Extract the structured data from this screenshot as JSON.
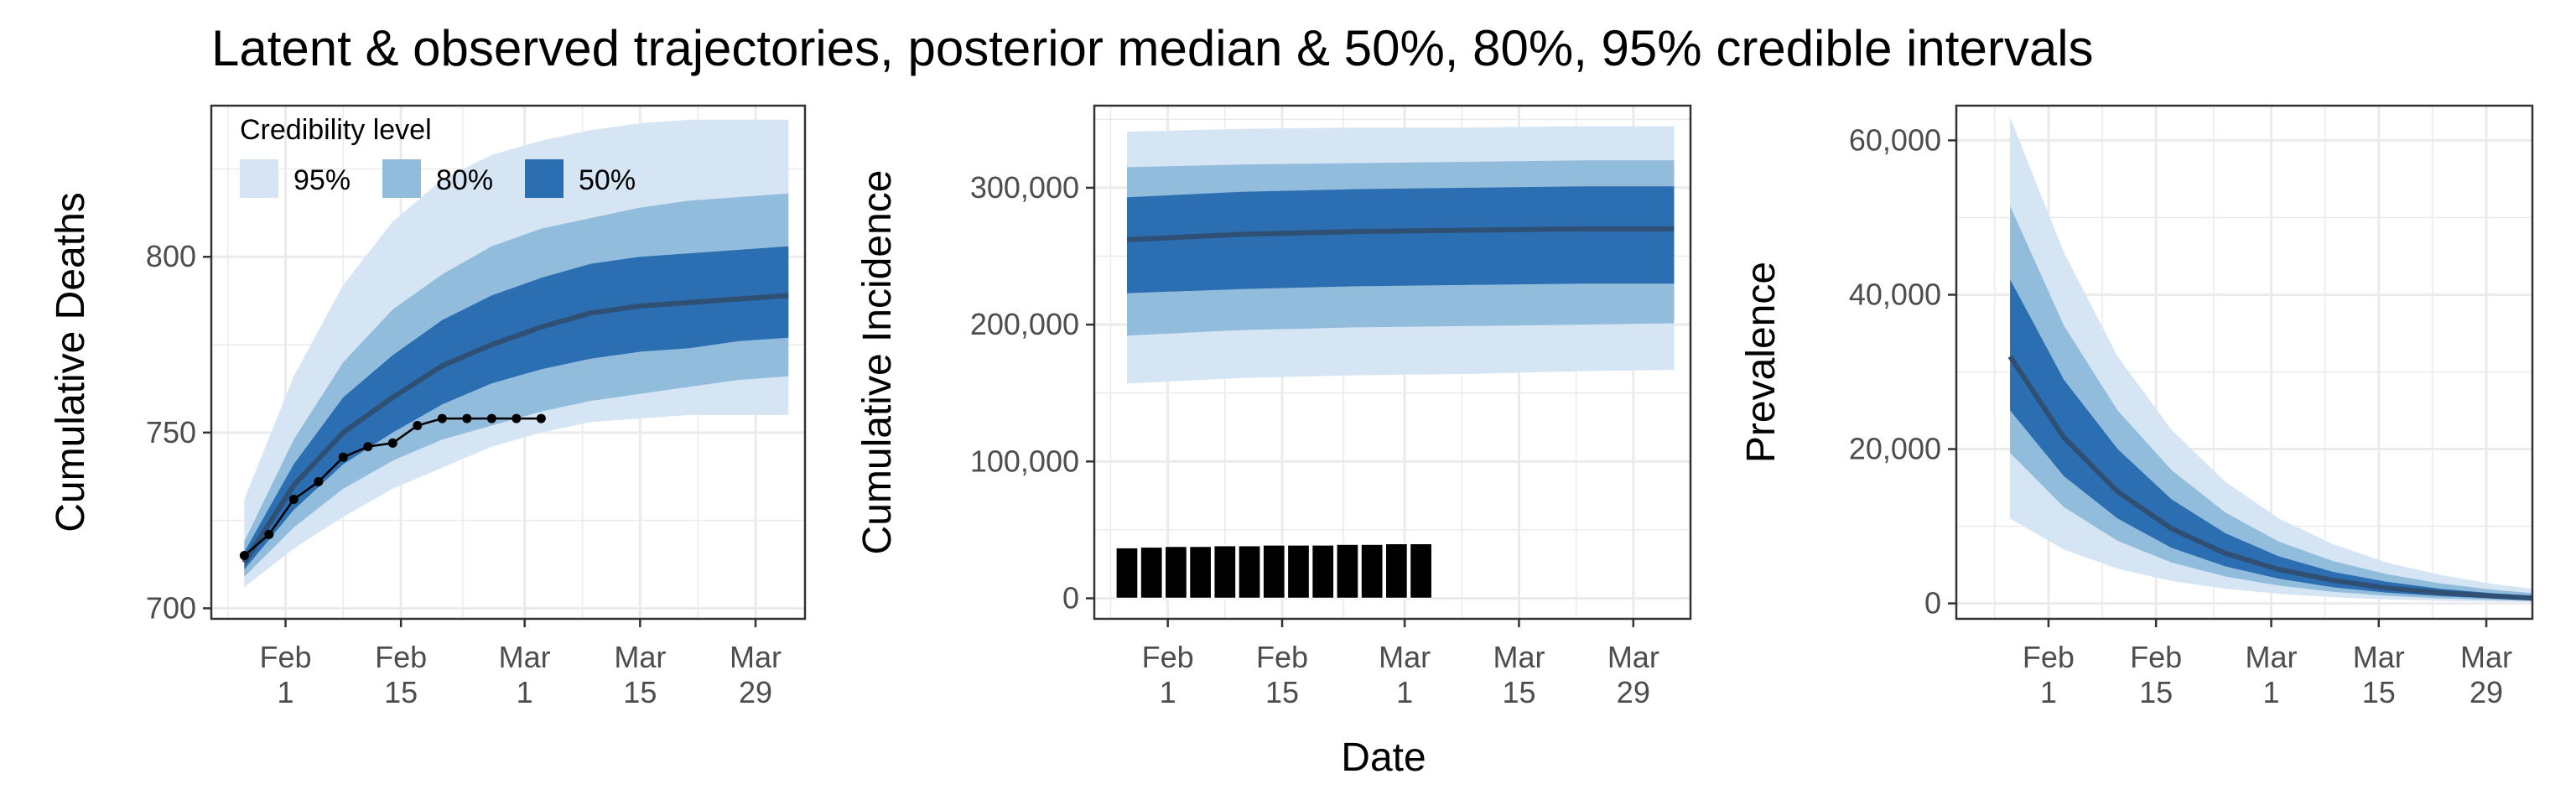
{
  "title": "Latent & observed trajectories, posterior median & 50%, 80%, 95% credible intervals",
  "shared_xlabel": "Date",
  "colors": {
    "band95": "#d6e5f4",
    "band80": "#91bcdb",
    "band50": "#2b6eb1",
    "median": "#2f4f73",
    "observed": "#000000",
    "grid": "#ebebeb",
    "frame": "#333333"
  },
  "legend": {
    "title": "Credibility level",
    "items": [
      {
        "label": "95%",
        "key": "band95"
      },
      {
        "label": "80%",
        "key": "band80"
      },
      {
        "label": "50%",
        "key": "band50"
      }
    ]
  },
  "x_ticks": [
    {
      "month": "Feb",
      "day": "1",
      "value": "2020-02-01"
    },
    {
      "month": "Feb",
      "day": "15",
      "value": "2020-02-15"
    },
    {
      "month": "Mar",
      "day": "1",
      "value": "2020-03-01"
    },
    {
      "month": "Mar",
      "day": "15",
      "value": "2020-03-15"
    },
    {
      "month": "Mar",
      "day": "29",
      "value": "2020-03-29"
    }
  ],
  "chart_data": [
    {
      "type": "area",
      "ylabel": "Cumulative Deaths",
      "xlim": [
        "2020-01-23",
        "2020-04-04"
      ],
      "ylim": [
        697,
        843
      ],
      "y_ticks": [
        {
          "value": 700,
          "label": "700"
        },
        {
          "value": 750,
          "label": "750"
        },
        {
          "value": 800,
          "label": "800"
        }
      ],
      "legend_position": "top-left",
      "bands": {
        "x": [
          "2020-01-27",
          "2020-02-02",
          "2020-02-08",
          "2020-02-14",
          "2020-02-20",
          "2020-02-26",
          "2020-03-03",
          "2020-03-09",
          "2020-03-15",
          "2020-03-21",
          "2020-03-27",
          "2020-04-02"
        ],
        "median": [
          713,
          735,
          750,
          760,
          769,
          775,
          780,
          784,
          786,
          787,
          788,
          789
        ],
        "lo50": [
          711,
          728,
          741,
          750,
          758,
          764,
          768,
          771,
          773,
          774,
          776,
          777
        ],
        "hi50": [
          716,
          741,
          760,
          772,
          782,
          789,
          794,
          798,
          800,
          801,
          802,
          803
        ],
        "lo80": [
          709,
          723,
          734,
          742,
          748,
          752,
          756,
          759,
          761,
          763,
          765,
          766
        ],
        "hi80": [
          719,
          748,
          770,
          785,
          795,
          803,
          808,
          811,
          814,
          816,
          817,
          818
        ],
        "lo95": [
          706,
          717,
          726,
          734,
          740,
          746,
          750,
          753,
          754,
          755,
          755,
          755
        ],
        "hi95": [
          731,
          766,
          792,
          810,
          822,
          829,
          833,
          836,
          838,
          839,
          839,
          839
        ]
      },
      "observed": {
        "style": "line-points",
        "x": [
          "2020-01-27",
          "2020-01-30",
          "2020-02-02",
          "2020-02-05",
          "2020-02-08",
          "2020-02-11",
          "2020-02-14",
          "2020-02-17",
          "2020-02-20",
          "2020-02-23",
          "2020-02-26",
          "2020-02-29",
          "2020-03-03"
        ],
        "values": [
          715,
          721,
          731,
          736,
          743,
          746,
          747,
          752,
          754,
          754,
          754,
          754,
          754
        ]
      }
    },
    {
      "type": "area",
      "ylabel": "Cumulative Incidence",
      "xlim": [
        "2020-01-23",
        "2020-04-05"
      ],
      "ylim": [
        -15000,
        360000
      ],
      "y_ticks": [
        {
          "value": 0,
          "label": "0"
        },
        {
          "value": 100000,
          "label": "100,000"
        },
        {
          "value": 200000,
          "label": "200,000"
        },
        {
          "value": 300000,
          "label": "300,000"
        }
      ],
      "bands": {
        "x": [
          "2020-01-27",
          "2020-02-10",
          "2020-02-24",
          "2020-03-09",
          "2020-03-23",
          "2020-04-03"
        ],
        "median": [
          262000,
          266000,
          268000,
          269000,
          270000,
          270000
        ],
        "lo50": [
          223000,
          226000,
          228000,
          229000,
          230000,
          230000
        ],
        "hi50": [
          293000,
          297000,
          299000,
          300000,
          301000,
          301000
        ],
        "lo80": [
          192000,
          196000,
          198000,
          199000,
          200000,
          201000
        ],
        "hi80": [
          315000,
          317000,
          318000,
          319000,
          320000,
          320000
        ],
        "lo95": [
          157000,
          161000,
          163000,
          164000,
          166000,
          167000
        ],
        "hi95": [
          341000,
          343000,
          344000,
          344000,
          345000,
          345000
        ]
      },
      "observed": {
        "style": "bars",
        "x": [
          "2020-01-27",
          "2020-01-30",
          "2020-02-02",
          "2020-02-05",
          "2020-02-08",
          "2020-02-11",
          "2020-02-14",
          "2020-02-17",
          "2020-02-20",
          "2020-02-23",
          "2020-02-26",
          "2020-02-29",
          "2020-03-03"
        ],
        "values": [
          37000,
          37500,
          38000,
          38000,
          38500,
          38500,
          39000,
          39000,
          39000,
          39500,
          39500,
          40000,
          40000
        ]
      }
    },
    {
      "type": "area",
      "ylabel": "Prevalence",
      "xlim": [
        "2020-01-20",
        "2020-04-04"
      ],
      "ylim": [
        -2000,
        64500
      ],
      "y_ticks": [
        {
          "value": 0,
          "label": "0"
        },
        {
          "value": 20000,
          "label": "20,000"
        },
        {
          "value": 40000,
          "label": "40,000"
        },
        {
          "value": 60000,
          "label": "60,000"
        }
      ],
      "bands": {
        "x": [
          "2020-01-27",
          "2020-02-03",
          "2020-02-10",
          "2020-02-17",
          "2020-02-24",
          "2020-03-02",
          "2020-03-09",
          "2020-03-16",
          "2020-03-23",
          "2020-03-30",
          "2020-04-04"
        ],
        "median": [
          32000,
          21500,
          14500,
          9700,
          6500,
          4400,
          3000,
          2000,
          1400,
          950,
          700
        ],
        "lo50": [
          25000,
          16500,
          11000,
          7200,
          4800,
          3200,
          2100,
          1400,
          950,
          640,
          480
        ],
        "hi50": [
          42000,
          29000,
          20000,
          13500,
          9100,
          6100,
          4100,
          2800,
          1900,
          1300,
          1000
        ],
        "lo80": [
          19500,
          12500,
          8100,
          5300,
          3500,
          2300,
          1500,
          1000,
          650,
          440,
          330
        ],
        "hi80": [
          51500,
          36000,
          25000,
          17300,
          11800,
          8000,
          5500,
          3800,
          2600,
          1750,
          1350
        ],
        "lo95": [
          11000,
          7000,
          4500,
          2900,
          1900,
          1250,
          800,
          520,
          340,
          230,
          170
        ],
        "hi95": [
          63000,
          45500,
          32000,
          22500,
          15800,
          11000,
          7700,
          5300,
          3700,
          2500,
          1900
        ]
      }
    }
  ]
}
